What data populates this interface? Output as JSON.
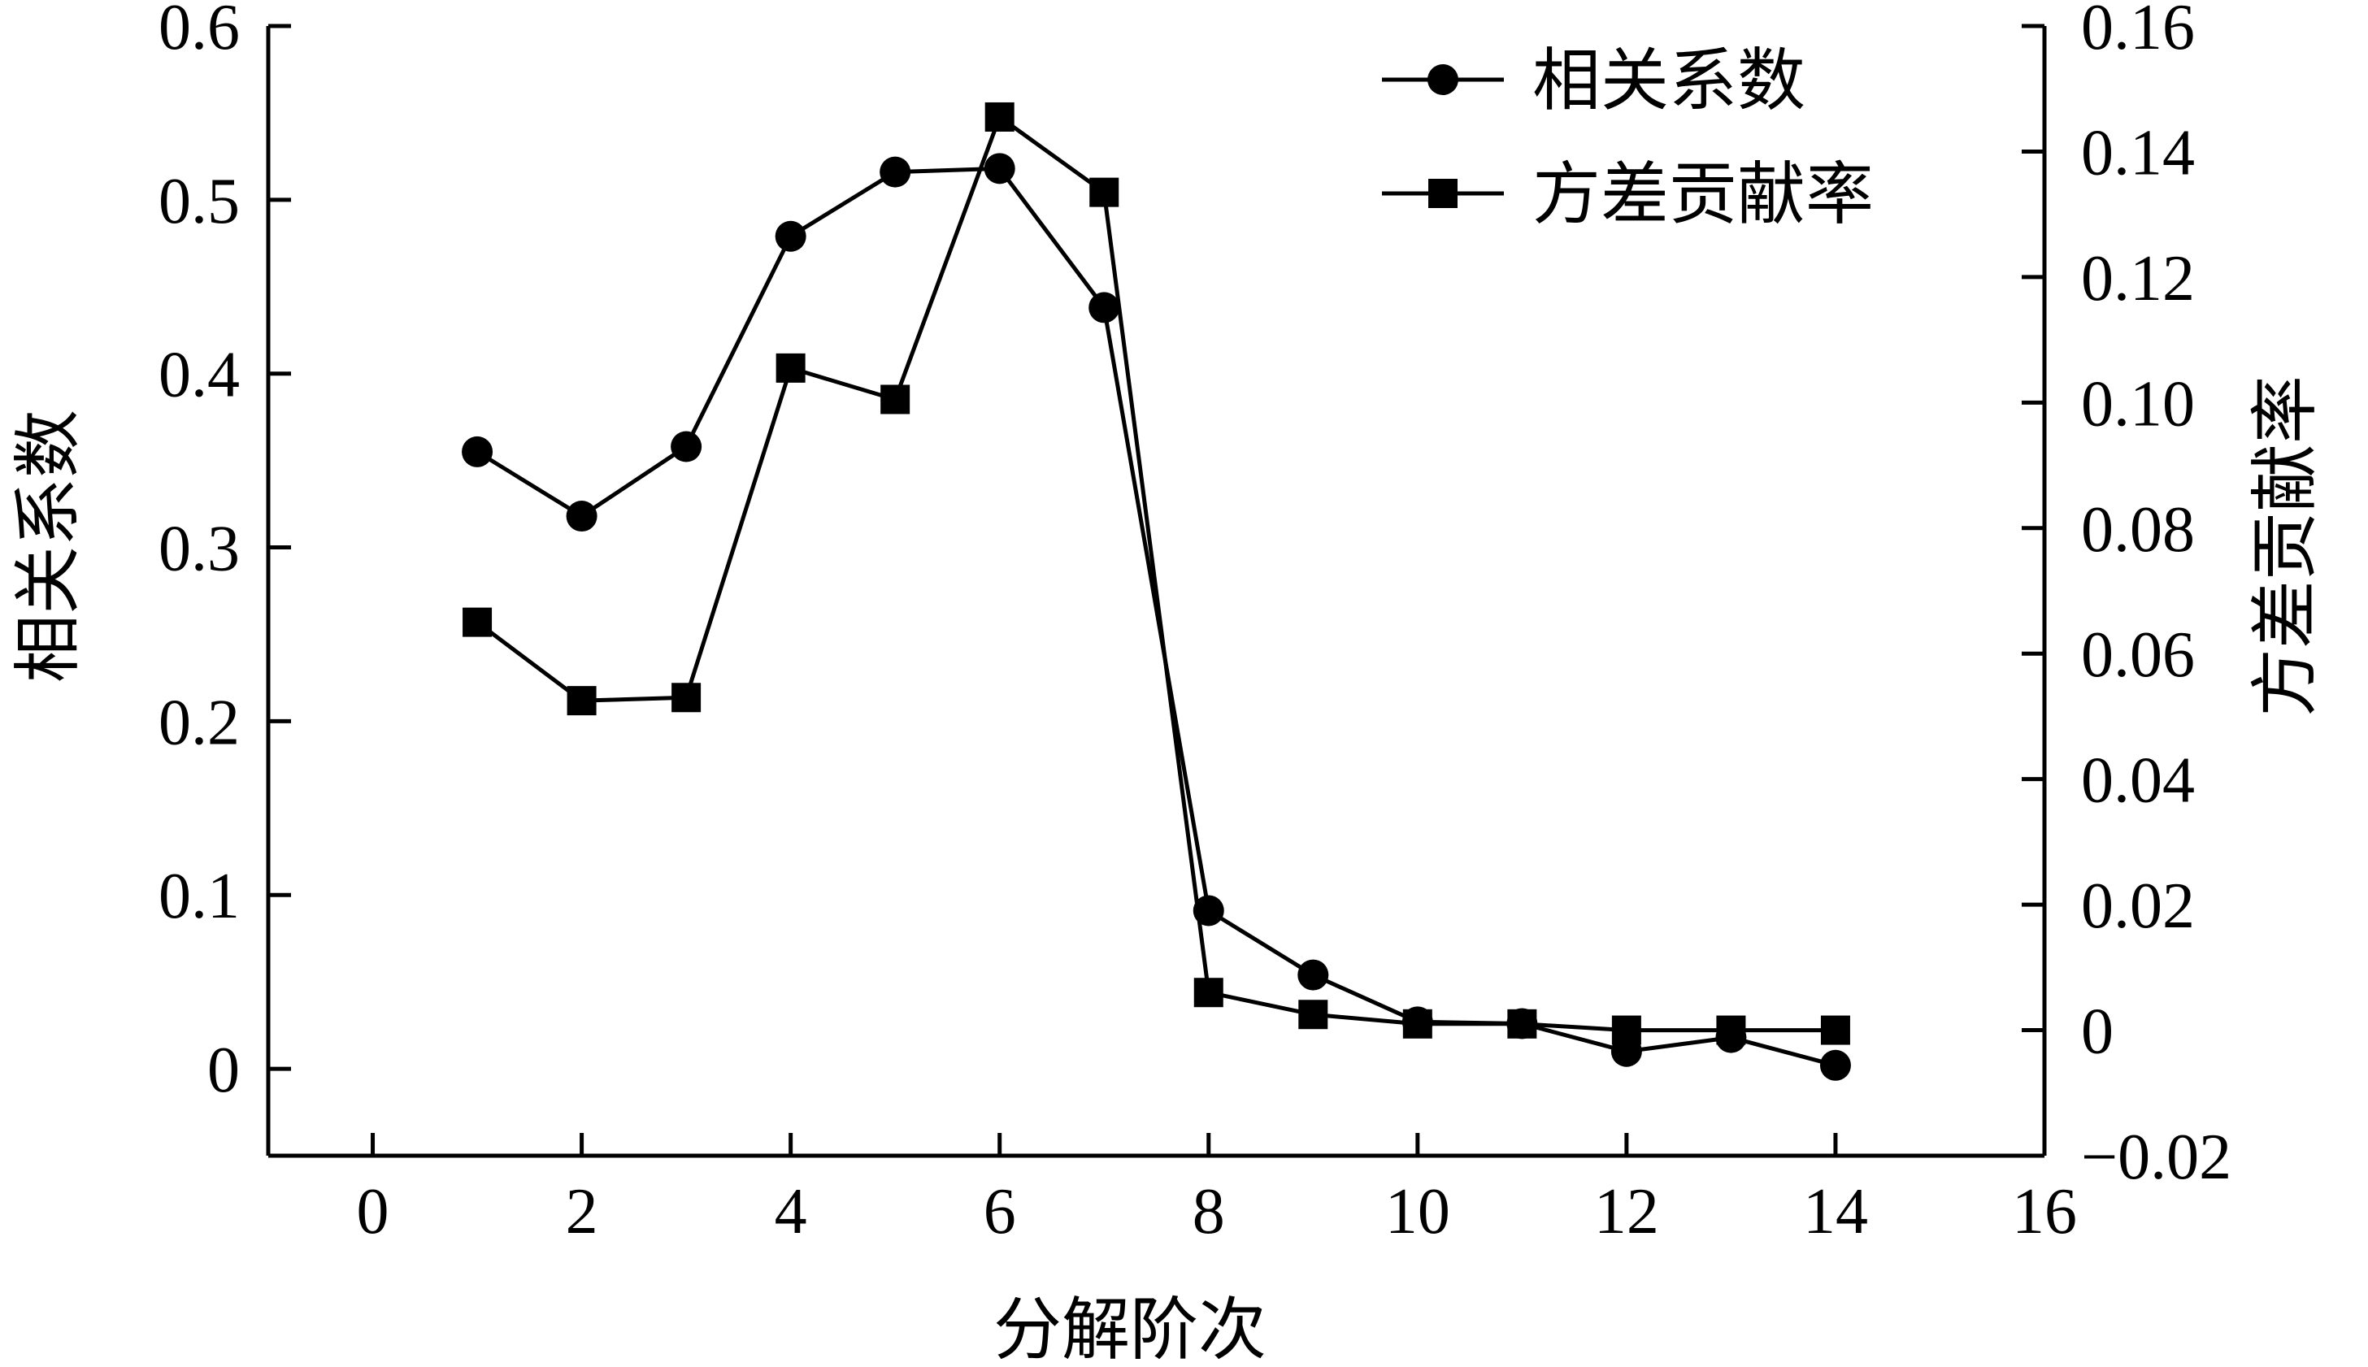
{
  "chart_data": {
    "type": "line",
    "xlabel": "分解阶次",
    "ylabel_left": "相关系数",
    "ylabel_right": "方差贡献率",
    "xlim": [
      -1,
      16
    ],
    "ylim_left": [
      -0.05,
      0.6
    ],
    "ylim_right": [
      -0.02,
      0.16
    ],
    "x_ticks": [
      "0",
      "2",
      "4",
      "6",
      "8",
      "10",
      "12",
      "14",
      "16"
    ],
    "y_left_ticks": [
      "0",
      "0.1",
      "0.2",
      "0.3",
      "0.4",
      "0.5",
      "0.6"
    ],
    "y_right_ticks": [
      "-0.02",
      "0",
      "0.02",
      "0.04",
      "0.06",
      "0.08",
      "0.10",
      "0.12",
      "0.14",
      "0.16"
    ],
    "grid": false,
    "legend_position": "top-right",
    "series": [
      {
        "name": "相关系数",
        "axis": "left",
        "marker": "circle",
        "x": [
          1,
          2,
          3,
          4,
          5,
          6,
          7,
          8,
          9,
          10,
          11,
          12,
          13,
          14
        ],
        "values": [
          0.355,
          0.318,
          0.358,
          0.479,
          0.516,
          0.518,
          0.438,
          0.091,
          0.054,
          0.027,
          0.026,
          0.01,
          0.018,
          0.002
        ]
      },
      {
        "name": "方差贡献率",
        "axis": "right",
        "marker": "square",
        "x": [
          1,
          2,
          3,
          4,
          5,
          6,
          7,
          8,
          9,
          10,
          11,
          12,
          13,
          14
        ],
        "values": [
          0.065,
          0.0525,
          0.053,
          0.1055,
          0.1005,
          0.1455,
          0.1335,
          0.006,
          0.0025,
          0.001,
          0.001,
          0.0,
          0.0,
          0.0
        ]
      }
    ]
  }
}
